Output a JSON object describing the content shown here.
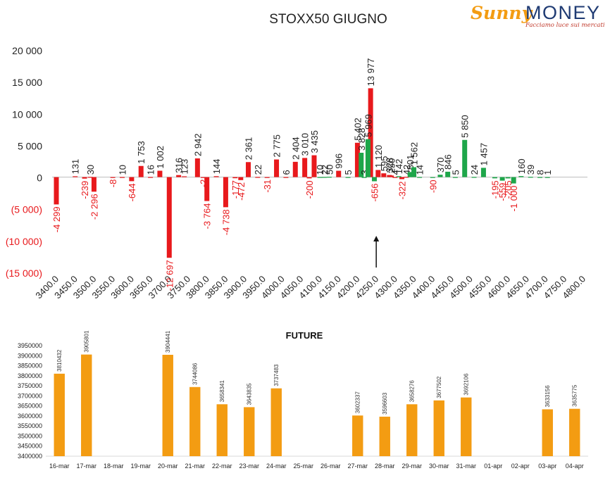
{
  "chart_data": [
    {
      "type": "bar",
      "title": "STOXX50 GIUGNO",
      "xlabel": "",
      "ylabel": "",
      "ylim": [
        -15000,
        20000
      ],
      "y_ticks": [
        "20 000",
        "15 000",
        "10 000",
        "5 000",
        "0",
        "(5 000)",
        "(10 000)",
        "(15 000)"
      ],
      "y_tick_values": [
        20000,
        15000,
        10000,
        5000,
        0,
        -5000,
        -10000,
        -15000
      ],
      "x_ticks": [
        "3400.0",
        "3450.0",
        "3500.0",
        "3550.0",
        "3600.0",
        "3650.0",
        "3700.0",
        "3750.0",
        "3800.0",
        "3850.0",
        "3900.0",
        "3950.0",
        "4000.0",
        "4050.0",
        "4100.0",
        "4150.0",
        "4200.0",
        "4250.0",
        "4300.0",
        "4350.0",
        "4400.0",
        "4450.0",
        "4500.0",
        "4550.0",
        "4600.0",
        "4650.0",
        "4700.0",
        "4750.0",
        "4800.0"
      ],
      "grid": false,
      "arrow_at_strike": 4250,
      "series": [
        {
          "color": "#e8191c",
          "points": [
            {
              "x": 3400,
              "value": -4299,
              "label": "-4 299"
            },
            {
              "x": 3450,
              "value": 131,
              "label": "131"
            },
            {
              "x": 3475,
              "value": -239,
              "label": "-239"
            },
            {
              "x": 3490,
              "value": 30,
              "label": "30"
            },
            {
              "x": 3500,
              "value": -2296,
              "label": "-2 296"
            },
            {
              "x": 3550,
              "value": -8,
              "label": "-8"
            },
            {
              "x": 3575,
              "value": 10,
              "label": "10"
            },
            {
              "x": 3600,
              "value": -644,
              "label": "-644"
            },
            {
              "x": 3625,
              "value": 1753,
              "label": "1 753"
            },
            {
              "x": 3650,
              "value": 16,
              "label": "16"
            },
            {
              "x": 3675,
              "value": 1002,
              "label": "1 002"
            },
            {
              "x": 3700,
              "value": -12697,
              "label": "-12 697"
            },
            {
              "x": 3725,
              "value": 316,
              "label": "316"
            },
            {
              "x": 3740,
              "value": 123,
              "label": "123"
            },
            {
              "x": 3775,
              "value": 2942,
              "label": "2 942"
            },
            {
              "x": 3790,
              "value": -2,
              "label": "-2"
            },
            {
              "x": 3800,
              "value": -3764,
              "label": "-3 764"
            },
            {
              "x": 3825,
              "value": 144,
              "label": "144"
            },
            {
              "x": 3850,
              "value": -4738,
              "label": "-4 738"
            },
            {
              "x": 3875,
              "value": -177,
              "label": "-177"
            },
            {
              "x": 3890,
              "value": -472,
              "label": "-472"
            },
            {
              "x": 3910,
              "value": 2361,
              "label": "2 361"
            },
            {
              "x": 3935,
              "value": 22,
              "label": "22"
            },
            {
              "x": 3960,
              "value": -31,
              "label": "-31"
            },
            {
              "x": 3985,
              "value": 2775,
              "label": "2 775"
            },
            {
              "x": 4010,
              "value": 6,
              "label": "6"
            },
            {
              "x": 4035,
              "value": 2404,
              "label": "2 404"
            },
            {
              "x": 4060,
              "value": 3010,
              "label": "3 010"
            },
            {
              "x": 4072,
              "value": -200,
              "label": "-200"
            },
            {
              "x": 4085,
              "value": 3435,
              "label": "3 435"
            },
            {
              "x": 4150,
              "value": 996,
              "label": "996"
            },
            {
              "x": 4200,
              "value": 5402,
              "label": "5 402"
            },
            {
              "x": 4235,
              "value": 13977,
              "label": "13 977"
            },
            {
              "x": 4255,
              "value": 1120,
              "label": "1 120"
            },
            {
              "x": 4270,
              "value": 595,
              "label": "595"
            },
            {
              "x": 4285,
              "value": 328,
              "label": "328"
            },
            {
              "x": 4290,
              "value": 250,
              "label": "250"
            },
            {
              "x": 4300,
              "value": 4,
              "label": "4"
            },
            {
              "x": 4318,
              "value": -322,
              "label": "-322"
            },
            {
              "x": 4330,
              "value": 42,
              "label": "42"
            }
          ]
        },
        {
          "color": "#1ea64a",
          "points": [
            {
              "x": 4100,
              "value": 10,
              "label": "10"
            },
            {
              "x": 4112,
              "value": 22,
              "label": "22"
            },
            {
              "x": 4125,
              "value": 50,
              "label": "50"
            },
            {
              "x": 4175,
              "value": 5,
              "label": "5"
            },
            {
              "x": 4210,
              "value": 3828,
              "label": "3 828"
            },
            {
              "x": 4218,
              "value": 3,
              "label": "3"
            },
            {
              "x": 4228,
              "value": 5969,
              "label": "5 969"
            },
            {
              "x": 4245,
              "value": -656,
              "label": "-656"
            },
            {
              "x": 4310,
              "value": 142,
              "label": "142"
            },
            {
              "x": 4340,
              "value": 801,
              "label": "801"
            },
            {
              "x": 4350,
              "value": 1562,
              "label": "1 562"
            },
            {
              "x": 4365,
              "value": 14,
              "label": "14"
            },
            {
              "x": 4400,
              "value": -90,
              "label": "-90"
            },
            {
              "x": 4420,
              "value": 370,
              "label": "370"
            },
            {
              "x": 4440,
              "value": 846,
              "label": "846"
            },
            {
              "x": 4460,
              "value": 5,
              "label": "5"
            },
            {
              "x": 4485,
              "value": 5850,
              "label": "5 850"
            },
            {
              "x": 4510,
              "value": 24,
              "label": "24"
            },
            {
              "x": 4535,
              "value": 1457,
              "label": "1 457"
            },
            {
              "x": 4565,
              "value": -195,
              "label": "-195"
            },
            {
              "x": 4585,
              "value": -559,
              "label": "-559"
            },
            {
              "x": 4600,
              "value": -205,
              "label": "-205"
            },
            {
              "x": 4615,
              "value": -1000,
              "label": "-1 000"
            },
            {
              "x": 4635,
              "value": 160,
              "label": "160"
            },
            {
              "x": 4660,
              "value": 39,
              "label": "39"
            },
            {
              "x": 4685,
              "value": 8,
              "label": "8"
            },
            {
              "x": 4705,
              "value": 1,
              "label": "1"
            }
          ]
        }
      ]
    },
    {
      "type": "bar",
      "title": "FUTURE",
      "xlabel": "",
      "ylabel": "",
      "ylim": [
        3400000,
        3950000
      ],
      "y_ticks": [
        "3950000",
        "3900000",
        "3850000",
        "3800000",
        "3750000",
        "3700000",
        "3650000",
        "3600000",
        "3550000",
        "3500000",
        "3450000",
        "3400000"
      ],
      "grid": false,
      "color": "#f39c12",
      "categories": [
        "16-mar",
        "17-mar",
        "18-mar",
        "19-mar",
        "20-mar",
        "21-mar",
        "22-mar",
        "23-mar",
        "24-mar",
        "25-mar",
        "26-mar",
        "27-mar",
        "28-mar",
        "29-mar",
        "30-mar",
        "31-mar",
        "01-apr",
        "02-apr",
        "03-apr",
        "04-apr"
      ],
      "values": [
        3810432,
        3905801,
        null,
        null,
        3904441,
        3744086,
        3658341,
        3643835,
        3737483,
        null,
        null,
        3602337,
        3596603,
        3658276,
        3677502,
        3692106,
        null,
        null,
        3633156,
        3635775
      ]
    }
  ],
  "logo": {
    "brand_a": "Sunny",
    "brand_b": "MONEY",
    "tagline": "Facciamo luce sui mercati"
  }
}
